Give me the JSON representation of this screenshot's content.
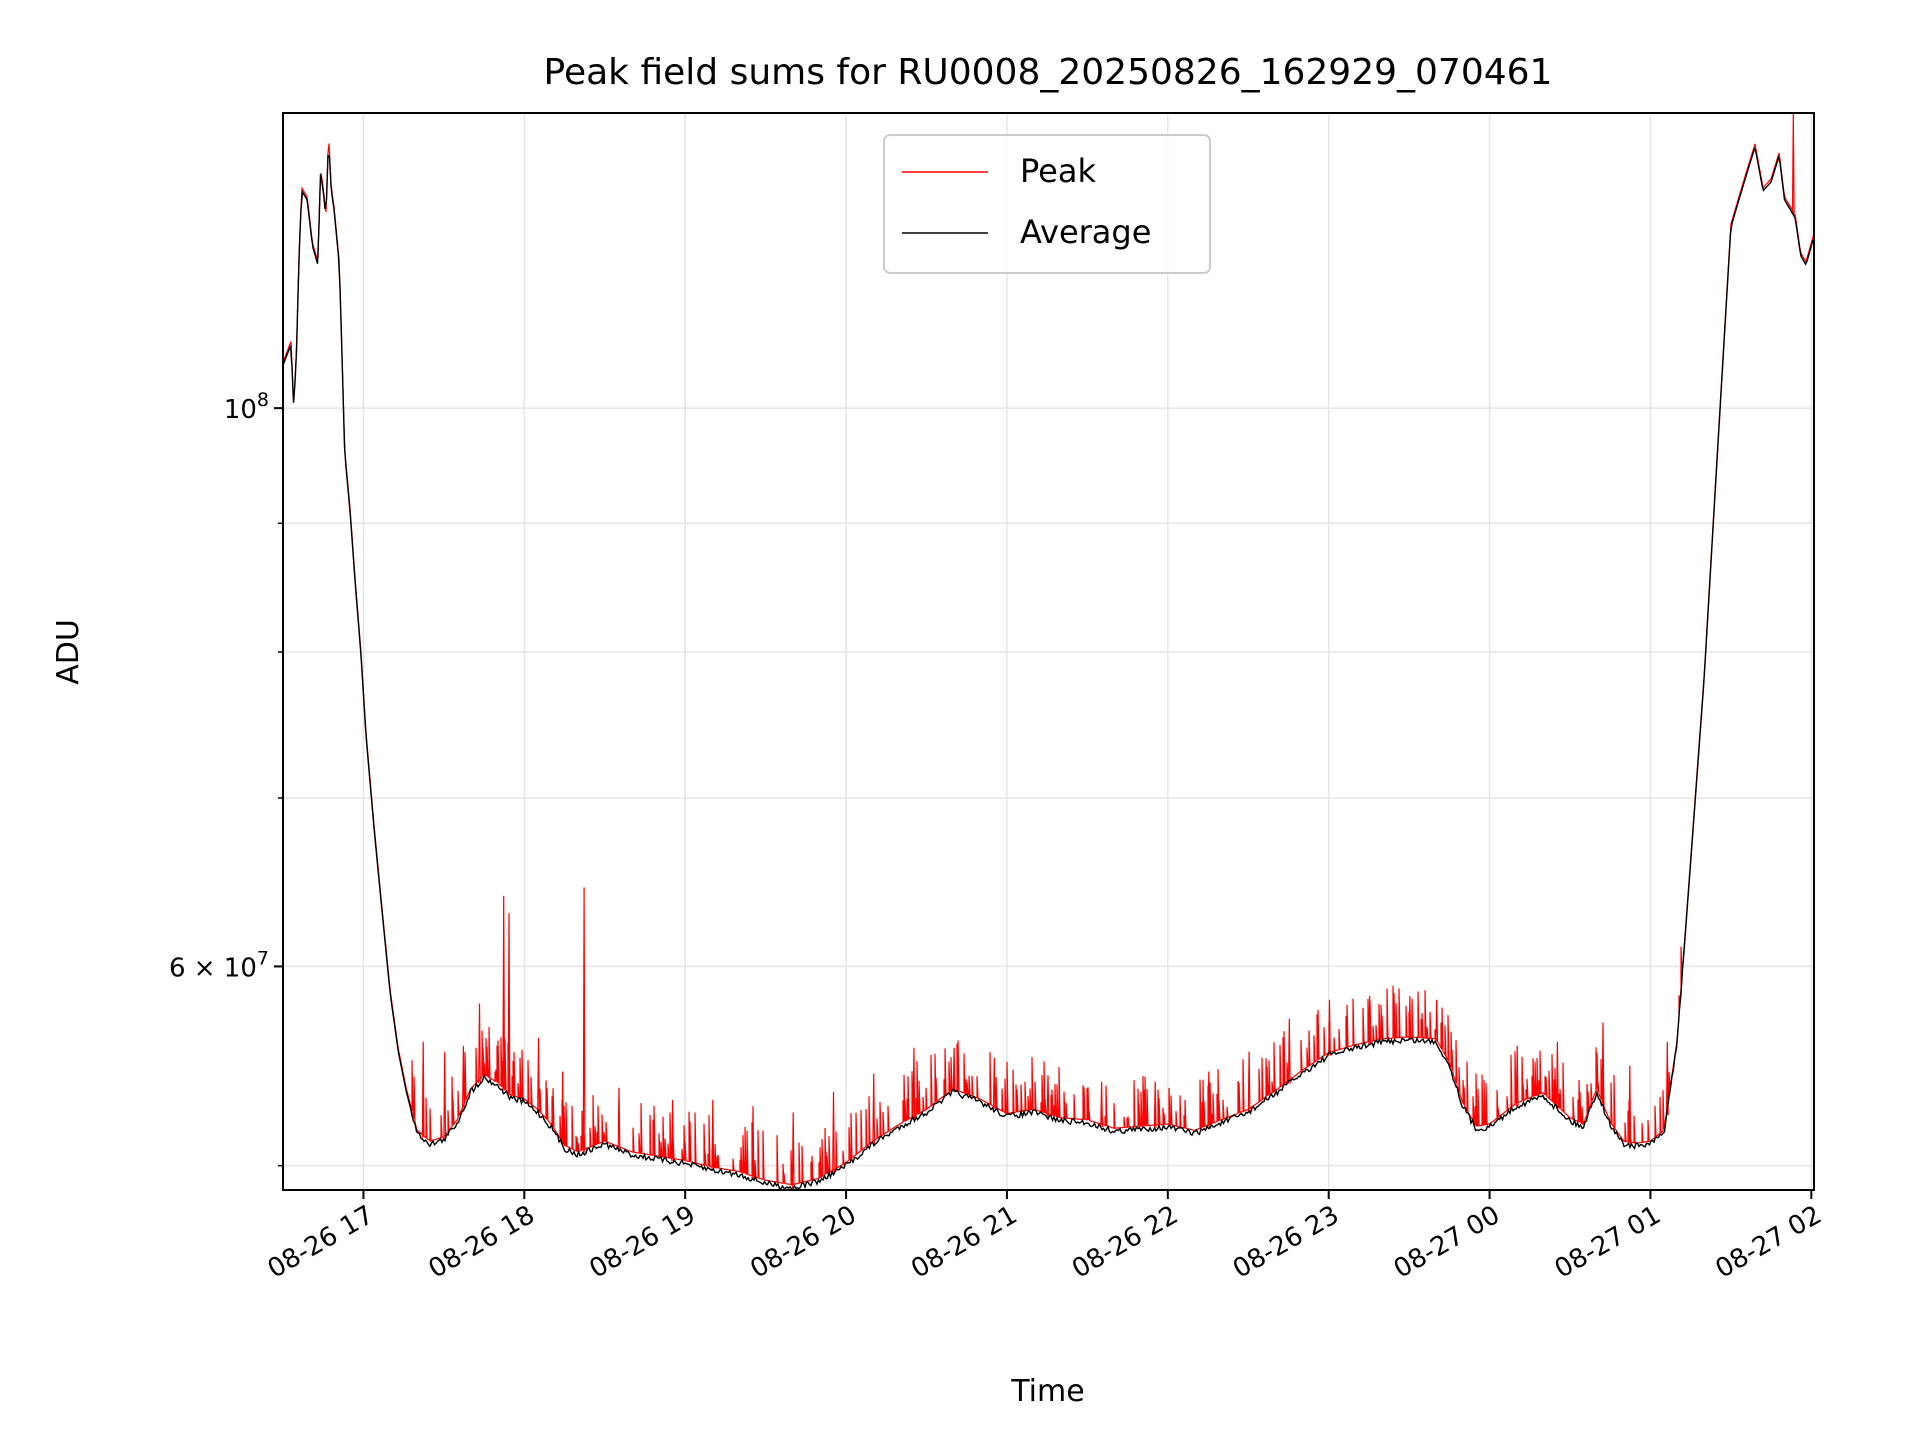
{
  "chart_data": {
    "type": "line",
    "title": "Peak field sums for RU0008_20250826_162929_070461",
    "xlabel": "Time",
    "ylabel": "ADU",
    "xlim": [
      "2025-08-26 16:30",
      "2025-08-27 02:01"
    ],
    "ylim": [
      48900000,
      131000000
    ],
    "yscale": "log",
    "grid": true,
    "legend_position": "upper-center",
    "colors": {
      "Peak": "#ff0000",
      "Average": "#000000",
      "grid": "#e5e5e5"
    },
    "x_ticks": [
      {
        "t": "2025-08-26 17:00",
        "label": "08-26 17"
      },
      {
        "t": "2025-08-26 18:00",
        "label": "08-26 18"
      },
      {
        "t": "2025-08-26 19:00",
        "label": "08-26 19"
      },
      {
        "t": "2025-08-26 20:00",
        "label": "08-26 20"
      },
      {
        "t": "2025-08-26 21:00",
        "label": "08-26 21"
      },
      {
        "t": "2025-08-26 22:00",
        "label": "08-26 22"
      },
      {
        "t": "2025-08-26 23:00",
        "label": "08-26 23"
      },
      {
        "t": "2025-08-27 00:00",
        "label": "08-27 00"
      },
      {
        "t": "2025-08-27 01:00",
        "label": "08-27 01"
      },
      {
        "t": "2025-08-27 02:00",
        "label": "08-27 02"
      }
    ],
    "y_major_ticks": [
      {
        "v": 100000000,
        "base": "10",
        "exp": "8"
      },
      {
        "v": 60000000,
        "base": "6 × 10",
        "exp": "7"
      }
    ],
    "y_minor_ticks": [
      50000000,
      70000000,
      80000000,
      90000000
    ],
    "series": [
      {
        "name": "Average",
        "x": [
          "2025-08-26 16:30",
          "2025-08-26 16:33",
          "2025-08-26 16:34",
          "2025-08-26 16:35",
          "2025-08-26 16:36",
          "2025-08-26 16:37",
          "2025-08-26 16:39",
          "2025-08-26 16:41",
          "2025-08-26 16:43",
          "2025-08-26 16:44",
          "2025-08-26 16:45",
          "2025-08-26 16:46",
          "2025-08-26 16:47",
          "2025-08-26 16:48",
          "2025-08-26 16:49",
          "2025-08-26 16:51",
          "2025-08-26 16:52",
          "2025-08-26 16:53",
          "2025-08-26 16:55",
          "2025-08-26 16:57",
          "2025-08-26 16:59",
          "2025-08-26 17:01",
          "2025-08-26 17:04",
          "2025-08-26 17:07",
          "2025-08-26 17:10",
          "2025-08-26 17:13",
          "2025-08-26 17:16",
          "2025-08-26 17:20",
          "2025-08-26 17:25",
          "2025-08-26 17:30",
          "2025-08-26 17:35",
          "2025-08-26 17:40",
          "2025-08-26 17:45",
          "2025-08-26 17:50",
          "2025-08-26 17:55",
          "2025-08-26 18:00",
          "2025-08-26 18:05",
          "2025-08-26 18:10",
          "2025-08-26 18:15",
          "2025-08-26 18:20",
          "2025-08-26 18:30",
          "2025-08-26 18:40",
          "2025-08-26 18:50",
          "2025-08-26 19:00",
          "2025-08-26 19:10",
          "2025-08-26 19:20",
          "2025-08-26 19:30",
          "2025-08-26 19:40",
          "2025-08-26 19:50",
          "2025-08-26 20:00",
          "2025-08-26 20:10",
          "2025-08-26 20:20",
          "2025-08-26 20:30",
          "2025-08-26 20:40",
          "2025-08-26 20:50",
          "2025-08-26 21:00",
          "2025-08-26 21:10",
          "2025-08-26 21:20",
          "2025-08-26 21:30",
          "2025-08-26 21:40",
          "2025-08-26 21:50",
          "2025-08-26 22:00",
          "2025-08-26 22:10",
          "2025-08-26 22:20",
          "2025-08-26 22:30",
          "2025-08-26 22:40",
          "2025-08-26 22:50",
          "2025-08-26 23:00",
          "2025-08-26 23:10",
          "2025-08-26 23:20",
          "2025-08-26 23:30",
          "2025-08-26 23:40",
          "2025-08-26 23:45",
          "2025-08-26 23:50",
          "2025-08-26 23:55",
          "2025-08-27 00:00",
          "2025-08-27 00:10",
          "2025-08-27 00:20",
          "2025-08-27 00:30",
          "2025-08-27 00:35",
          "2025-08-27 00:40",
          "2025-08-27 00:45",
          "2025-08-27 00:50",
          "2025-08-27 00:55",
          "2025-08-27 01:00",
          "2025-08-27 01:05",
          "2025-08-27 01:10",
          "2025-08-27 01:15",
          "2025-08-27 01:20",
          "2025-08-27 01:25",
          "2025-08-27 01:30",
          "2025-08-27 01:33",
          "2025-08-27 01:36",
          "2025-08-27 01:39",
          "2025-08-27 01:42",
          "2025-08-27 01:45",
          "2025-08-27 01:48",
          "2025-08-27 01:50",
          "2025-08-27 01:52",
          "2025-08-27 01:54",
          "2025-08-27 01:56",
          "2025-08-27 01:58",
          "2025-08-27 02:00",
          "2025-08-27 02:01"
        ],
        "values": [
          104000000,
          106000000,
          100000000,
          105000000,
          115000000,
          122000000,
          121000000,
          116000000,
          114000000,
          124000000,
          122000000,
          119000000,
          128000000,
          122000000,
          120000000,
          114000000,
          105000000,
          96000000,
          91000000,
          85000000,
          80000000,
          74000000,
          68000000,
          63000000,
          58500000,
          55500000,
          53500000,
          51500000,
          51000000,
          51200000,
          52000000,
          53500000,
          54200000,
          53800000,
          53200000,
          53000000,
          52500000,
          51800000,
          50800000,
          50500000,
          51000000,
          50500000,
          50300000,
          50100000,
          49800000,
          49600000,
          49200000,
          49000000,
          49300000,
          50000000,
          51000000,
          51800000,
          52500000,
          53500000,
          53000000,
          52300000,
          52500000,
          52100000,
          52000000,
          51600000,
          51700000,
          51800000,
          51500000,
          52000000,
          52500000,
          53400000,
          54400000,
          55300000,
          55700000,
          56000000,
          56100000,
          56000000,
          54800000,
          52800000,
          51700000,
          51800000,
          52800000,
          53300000,
          52100000,
          51800000,
          53500000,
          51900000,
          51000000,
          50900000,
          51000000,
          51500000,
          56000000,
          66000000,
          78000000,
          96000000,
          118000000,
          121000000,
          124000000,
          127000000,
          122000000,
          123000000,
          126000000,
          121000000,
          120000000,
          119000000,
          115000000,
          114000000,
          116000000,
          117000000
        ]
      },
      {
        "name": "Peak",
        "spikes": [
          [
            "2025-08-26 17:43",
            58000000
          ],
          [
            "2025-08-26 17:52",
            64000000
          ],
          [
            "2025-08-26 17:54",
            63000000
          ],
          [
            "2025-08-26 18:22",
            64500000
          ],
          [
            "2025-08-26 17:22",
            56000000
          ],
          [
            "2025-08-26 17:30",
            55500000
          ],
          [
            "2025-08-26 17:37",
            55800000
          ],
          [
            "2025-08-26 18:05",
            56200000
          ],
          [
            "2025-08-26 18:14",
            54500000
          ],
          [
            "2025-08-26 18:35",
            53700000
          ],
          [
            "2025-08-26 18:55",
            53100000
          ],
          [
            "2025-08-26 19:10",
            53100000
          ],
          [
            "2025-08-26 19:25",
            52800000
          ],
          [
            "2025-08-26 19:40",
            52500000
          ],
          [
            "2025-08-26 19:55",
            53500000
          ],
          [
            "2025-08-26 20:10",
            54400000
          ],
          [
            "2025-08-26 20:25",
            55700000
          ],
          [
            "2025-08-26 20:40",
            55700000
          ],
          [
            "2025-08-26 20:55",
            55200000
          ],
          [
            "2025-08-26 21:15",
            54300000
          ],
          [
            "2025-08-26 21:35",
            54000000
          ],
          [
            "2025-08-26 21:55",
            54000000
          ],
          [
            "2025-08-26 22:15",
            54500000
          ],
          [
            "2025-08-26 22:30",
            55500000
          ],
          [
            "2025-08-26 22:45",
            57200000
          ],
          [
            "2025-08-26 23:00",
            58200000
          ],
          [
            "2025-08-26 23:15",
            58400000
          ],
          [
            "2025-08-26 23:30",
            58400000
          ],
          [
            "2025-08-26 23:40",
            58200000
          ],
          [
            "2025-08-27 00:10",
            55800000
          ],
          [
            "2025-08-27 00:25",
            56000000
          ],
          [
            "2025-08-27 00:42",
            57000000
          ],
          [
            "2025-08-27 00:52",
            54800000
          ],
          [
            "2025-08-27 01:06",
            56000000
          ],
          [
            "2025-08-27 01:53",
            131000000
          ]
        ]
      }
    ]
  }
}
